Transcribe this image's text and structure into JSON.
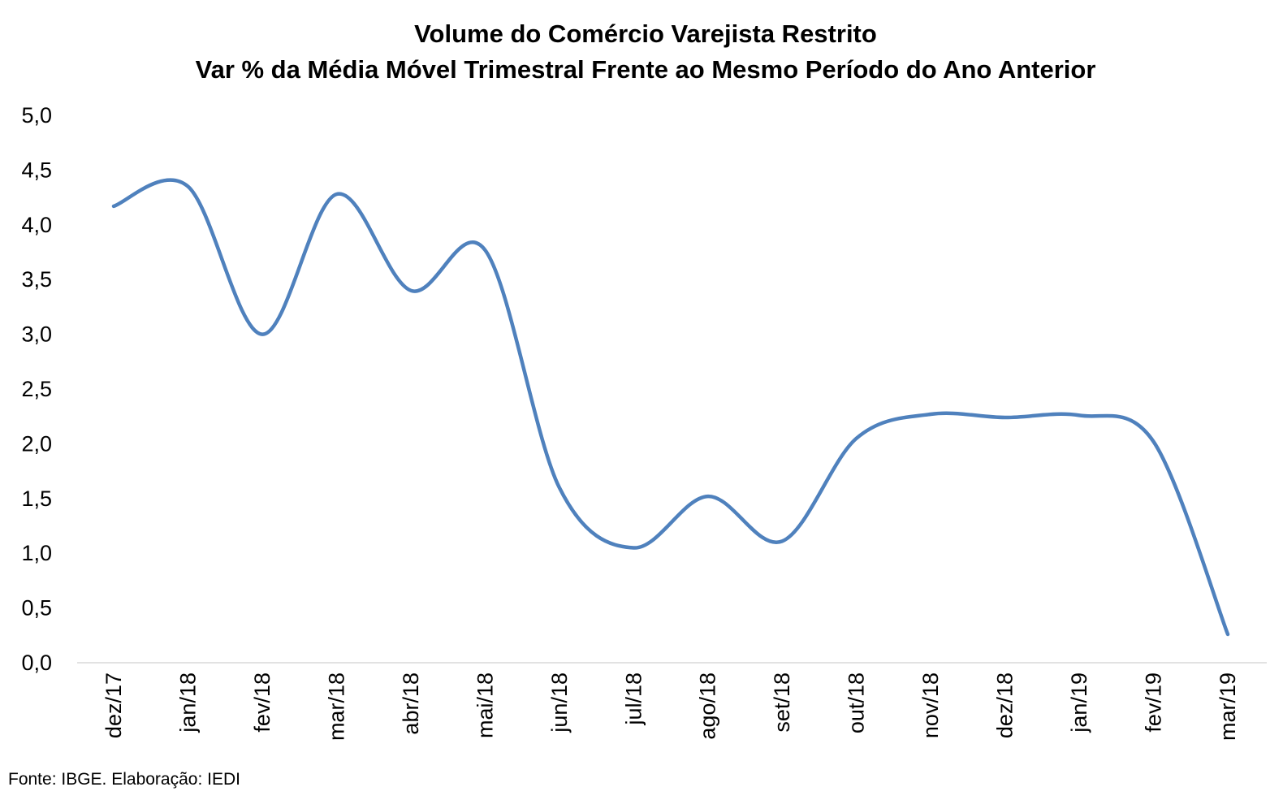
{
  "chart_data": {
    "type": "line",
    "title": "Volume do Comércio Varejista Restrito",
    "subtitle": "Var % da Média Móvel Trimestral Frente ao Mesmo Período do Ano Anterior",
    "categories": [
      "dez/17",
      "jan/18",
      "fev/18",
      "mar/18",
      "abr/18",
      "mai/18",
      "jun/18",
      "jul/18",
      "ago/18",
      "set/18",
      "out/18",
      "nov/18",
      "dez/18",
      "jan/19",
      "fev/19",
      "mar/19"
    ],
    "series": [
      {
        "values": [
          4.17,
          4.35,
          3.0,
          4.28,
          3.4,
          3.77,
          1.6,
          1.05,
          1.52,
          1.11,
          2.05,
          2.27,
          2.24,
          2.26,
          2.02,
          0.26
        ]
      }
    ],
    "yticks": [
      "0,0",
      "0,5",
      "1,0",
      "1,5",
      "2,0",
      "2,5",
      "3,0",
      "3,5",
      "4,0",
      "4,5",
      "5,0"
    ],
    "ylim": [
      0,
      5
    ],
    "smooth": true,
    "grid": false,
    "line_color": "#4F81BD",
    "source_note": "Fonte: IBGE. Elaboração: IEDI"
  }
}
